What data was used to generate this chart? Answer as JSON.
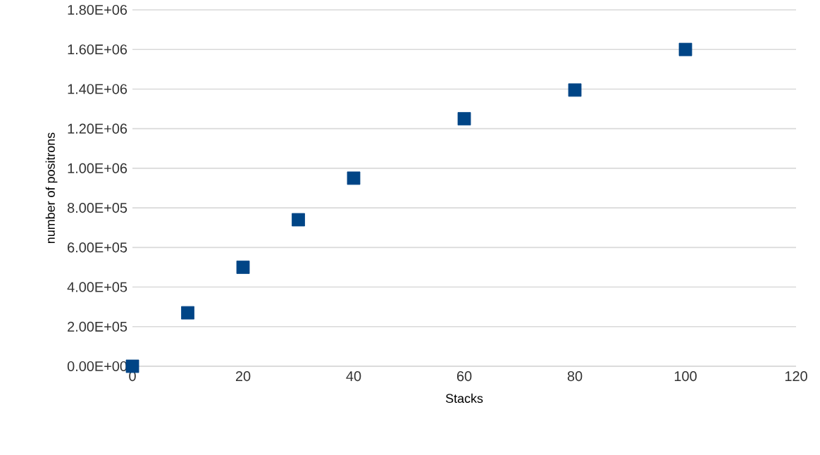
{
  "chart_data": {
    "type": "scatter",
    "xlabel": "Stacks",
    "ylabel": "number of positrons",
    "x": [
      0,
      10,
      20,
      30,
      40,
      60,
      80,
      100
    ],
    "values": [
      0,
      270000,
      500000,
      740000,
      950000,
      1250000,
      1395000,
      1600000
    ],
    "color": "#004586",
    "marker": "square",
    "grid": "y",
    "legend": false,
    "xlim": [
      0,
      120
    ],
    "xticks": [
      0,
      20,
      40,
      60,
      80,
      100,
      120
    ],
    "ylim": [
      0,
      1800000
    ],
    "yticks": [
      {
        "value": 0,
        "label": "0.00E+00"
      },
      {
        "value": 200000,
        "label": "2.00E+05"
      },
      {
        "value": 400000,
        "label": "4.00E+05"
      },
      {
        "value": 600000,
        "label": "6.00E+05"
      },
      {
        "value": 800000,
        "label": "8.00E+05"
      },
      {
        "value": 1000000,
        "label": "1.00E+06"
      },
      {
        "value": 1200000,
        "label": "1.20E+06"
      },
      {
        "value": 1400000,
        "label": "1.40E+06"
      },
      {
        "value": 1600000,
        "label": "1.60E+06"
      },
      {
        "value": 1800000,
        "label": "1.80E+06"
      }
    ]
  }
}
